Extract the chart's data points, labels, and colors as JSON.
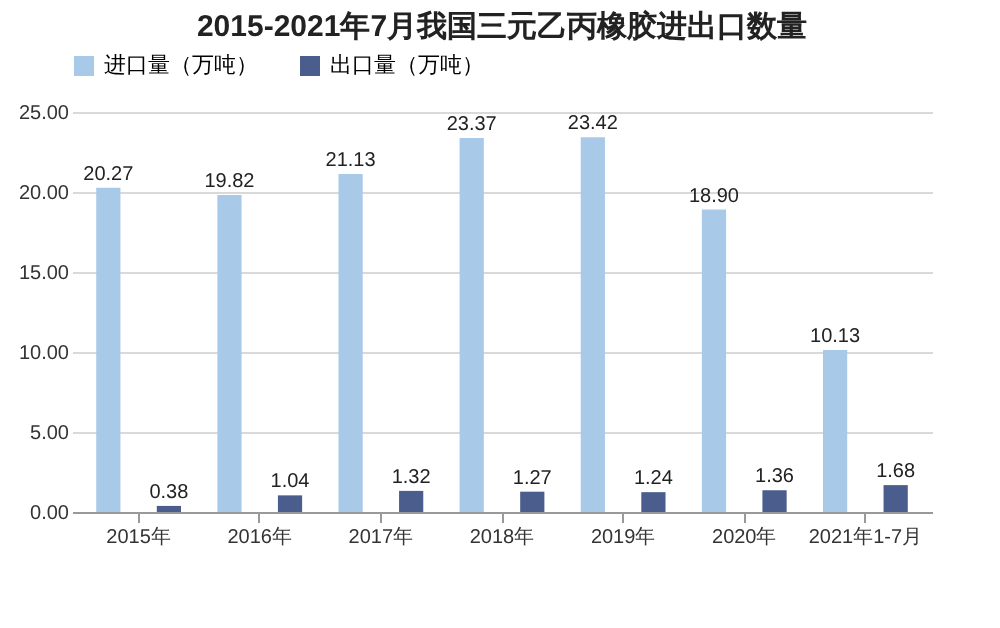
{
  "chart_data": {
    "type": "bar",
    "title": "2015-2021年7月我国三元乙丙橡胶进出口数量",
    "categories": [
      "2015年",
      "2016年",
      "2017年",
      "2018年",
      "2019年",
      "2020年",
      "2021年1-7月"
    ],
    "series": [
      {
        "name": "进口量（万吨）",
        "color": "#a9c9e9",
        "values": [
          20.27,
          19.82,
          21.13,
          23.37,
          23.42,
          18.9,
          10.13
        ],
        "value_labels": [
          "20.27",
          "19.82",
          "21.13",
          "23.37",
          "23.42",
          "18.90",
          "10.13"
        ]
      },
      {
        "name": "出口量（万吨）",
        "color": "#4b5d8c",
        "values": [
          0.38,
          1.04,
          1.32,
          1.27,
          1.24,
          1.36,
          1.68
        ],
        "value_labels": [
          "0.38",
          "1.04",
          "1.32",
          "1.27",
          "1.24",
          "1.36",
          "1.68"
        ]
      }
    ],
    "ylim": [
      0,
      25
    ],
    "yticks": [
      {
        "value": 0,
        "label": "0.00"
      },
      {
        "value": 5,
        "label": "5.00"
      },
      {
        "value": 10,
        "label": "10.00"
      },
      {
        "value": 15,
        "label": "15.00"
      },
      {
        "value": 20,
        "label": "20.00"
      },
      {
        "value": 25,
        "label": "25.00"
      }
    ],
    "grid": "y",
    "legend": "top"
  }
}
